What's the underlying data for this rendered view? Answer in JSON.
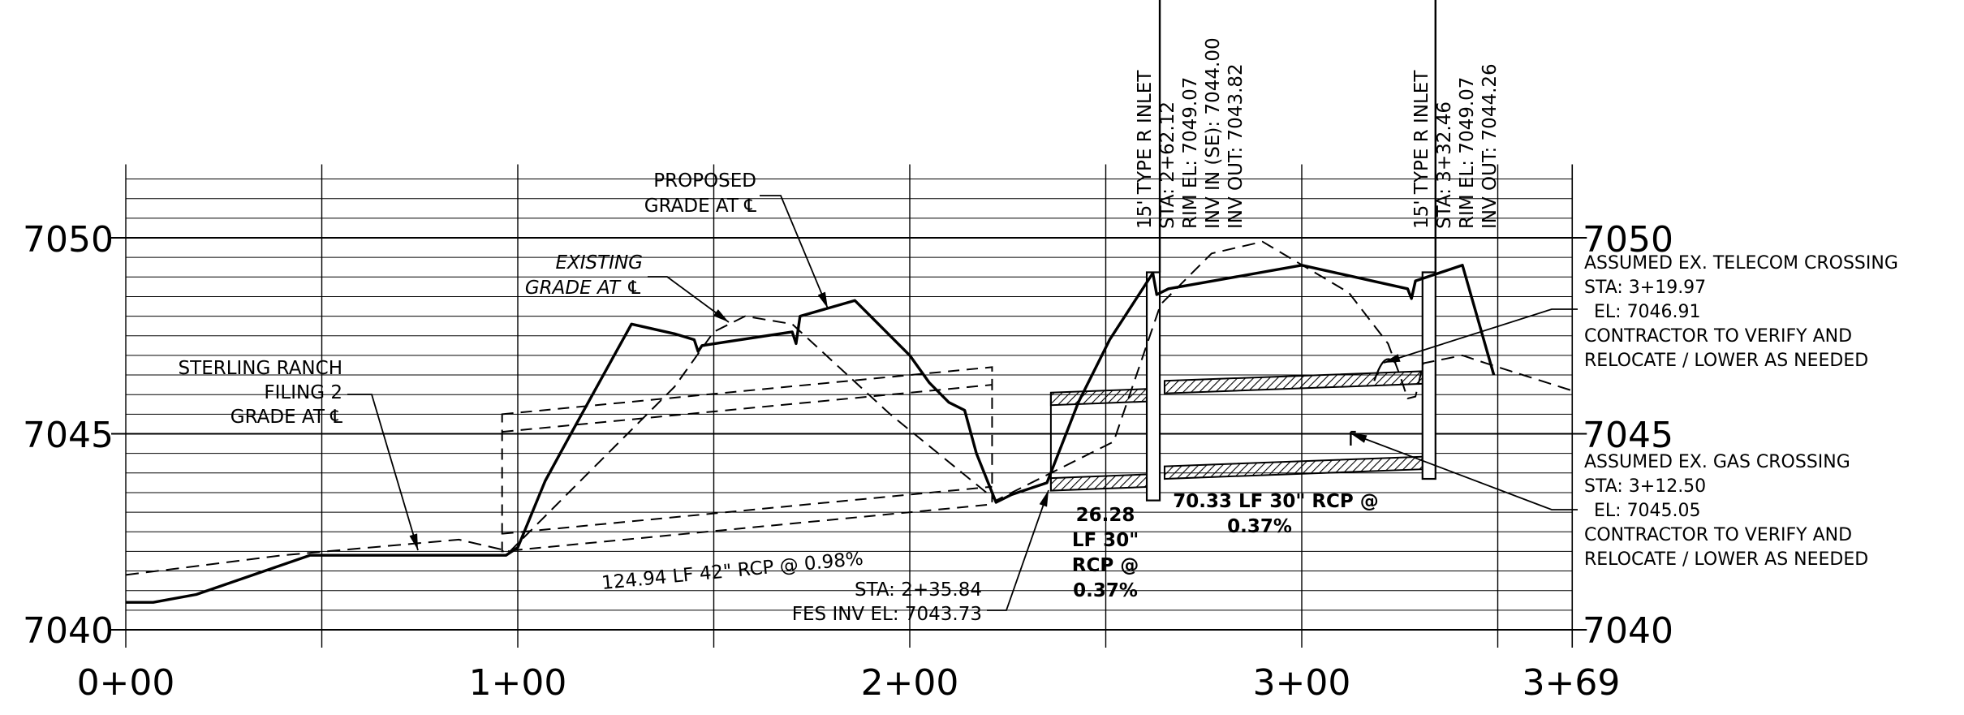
{
  "chart_data": {
    "type": "line",
    "title": "",
    "xlabel": "",
    "ylabel": "",
    "x_ticks": [
      "0+00",
      "1+00",
      "2+00",
      "3+00",
      "3+69"
    ],
    "y_ticks": [
      "7040",
      "7045",
      "7050"
    ],
    "xlim": [
      0,
      369
    ],
    "ylim": [
      7040,
      7051.5
    ],
    "grid": "on",
    "series": [
      {
        "name": "Sterling Ranch Filing 2 grade at CL",
        "style": "solid-heavy",
        "points": [
          [
            0,
            7040.7
          ],
          [
            7,
            7040.7
          ],
          [
            18,
            7040.9
          ],
          [
            47,
            7041.9
          ],
          [
            97,
            7041.9
          ],
          [
            100,
            7042.1
          ],
          [
            107,
            7043.8
          ],
          [
            113,
            7044.9
          ],
          [
            129,
            7047.8
          ],
          [
            140,
            7047.55
          ],
          [
            145,
            7047.4
          ],
          [
            146,
            7047.1
          ],
          [
            147,
            7047.25
          ],
          [
            170,
            7047.6
          ],
          [
            171,
            7047.3
          ],
          [
            172,
            7048.0
          ],
          [
            186,
            7048.4
          ],
          [
            200,
            7047.0
          ],
          [
            205,
            7046.3
          ],
          [
            210,
            7045.8
          ],
          [
            214,
            7045.6
          ],
          [
            217,
            7044.5
          ],
          [
            222,
            7043.25
          ],
          [
            226,
            7043.45
          ],
          [
            235,
            7043.75
          ],
          [
            243,
            7045.8
          ],
          [
            251,
            7047.4
          ],
          [
            262,
            7049.1
          ],
          [
            263,
            7048.55
          ],
          [
            266,
            7048.7
          ],
          [
            300,
            7049.3
          ],
          [
            327,
            7048.7
          ],
          [
            328,
            7048.45
          ],
          [
            329,
            7048.9
          ],
          [
            341,
            7049.3
          ],
          [
            349,
            7046.5
          ]
        ]
      },
      {
        "name": "Existing grade at CL",
        "style": "dashed",
        "points": [
          [
            0,
            7041.4
          ],
          [
            40,
            7041.9
          ],
          [
            85,
            7042.3
          ],
          [
            98,
            7042.0
          ],
          [
            100,
            7042.2
          ],
          [
            140,
            7046.2
          ],
          [
            150,
            7047.6
          ],
          [
            158,
            7048.0
          ],
          [
            170,
            7047.8
          ],
          [
            195,
            7045.5
          ],
          [
            222,
            7043.3
          ],
          [
            252,
            7044.8
          ],
          [
            264,
            7048.3
          ],
          [
            277,
            7049.6
          ],
          [
            290,
            7049.9
          ],
          [
            312,
            7048.6
          ],
          [
            322,
            7047.3
          ],
          [
            325,
            7046.5
          ],
          [
            327,
            7045.9
          ],
          [
            329,
            7045.95
          ],
          [
            331,
            7046.8
          ],
          [
            341,
            7047.0
          ],
          [
            347,
            7046.8
          ],
          [
            369,
            7046.1
          ]
        ]
      }
    ],
    "pipes": [
      {
        "label": "124.94 LF 42\" RCP @ 0.98%",
        "x_start": 96,
        "x_end": 221,
        "invert_start": 7042.0,
        "invert_end": 7043.2,
        "dia_ft": 3.5
      },
      {
        "label": "26.28 LF 30\" RCP @ 0.37%",
        "x_start": 236,
        "x_end": 262,
        "invert_start": 7043.55,
        "invert_end": 7043.65,
        "dia_ft": 2.5
      },
      {
        "label": "70.33 LF 30\" RCP @ 0.37%",
        "x_start": 265,
        "x_end": 332,
        "invert_start": 7043.85,
        "invert_end": 7044.1,
        "dia_ft": 2.5
      }
    ],
    "structures": [
      {
        "station": 262.12,
        "labels": [
          "15' TYPE R INLET",
          "STA: 2+62.12",
          "RIM EL: 7049.07",
          "INV IN (SE): 7044.00",
          "INV OUT: 7043.82"
        ]
      },
      {
        "station": 332.46,
        "labels": [
          "15' TYPE R INLET",
          "STA: 3+32.46",
          "RIM EL: 7049.07",
          "INV OUT: 7044.26"
        ]
      }
    ],
    "annotations": {
      "sterling": [
        "STERLING RANCH",
        "FILING 2",
        "GRADE AT ℄"
      ],
      "proposed": [
        "PROPOSED",
        "GRADE AT ℄"
      ],
      "existing": [
        "EXISTING",
        "GRADE AT ℄"
      ],
      "fes": [
        "STA: 2+35.84",
        "FES INV EL: 7043.73"
      ],
      "telecom": [
        "ASSUMED EX. TELECOM CROSSING",
        "STA: 3+19.97",
        "EL: 7046.91",
        "CONTRACTOR TO VERIFY AND",
        "RELOCATE / LOWER AS NEEDED"
      ],
      "gas": [
        "ASSUMED EX. GAS CROSSING",
        "STA: 3+12.50",
        "EL: 7045.05",
        "CONTRACTOR TO VERIFY AND",
        "RELOCATE / LOWER AS NEEDED"
      ]
    }
  }
}
